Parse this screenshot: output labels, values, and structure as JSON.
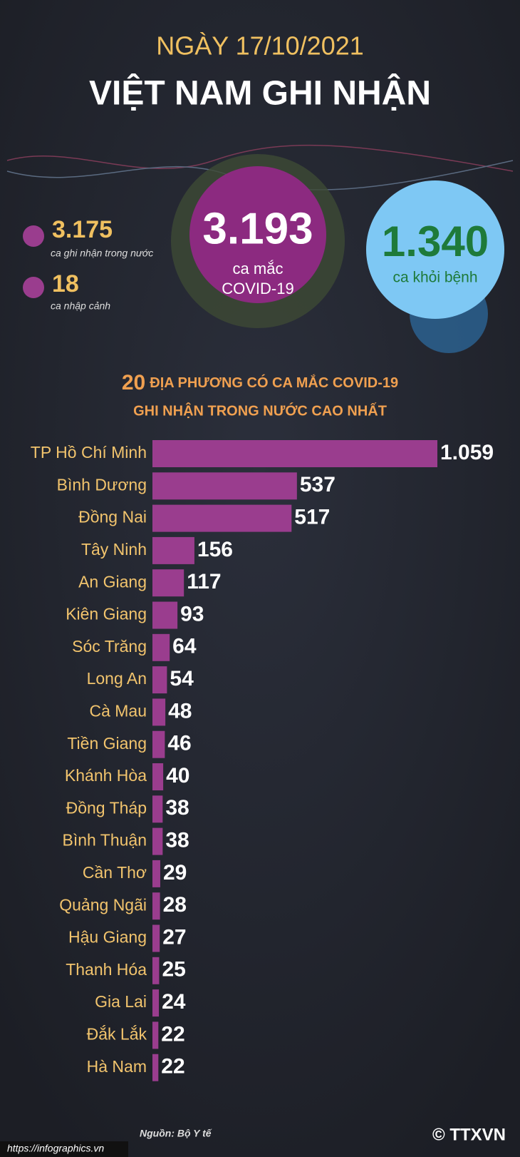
{
  "header": {
    "date": "NGÀY 17/10/2021",
    "title": "VIỆT NAM GHI NHẬN"
  },
  "summary": {
    "domestic": {
      "value": "3.175",
      "label": "ca ghi nhận trong nước"
    },
    "imported": {
      "value": "18",
      "label": "ca nhập cảnh"
    },
    "total": {
      "value": "3.193",
      "label": "ca mắc",
      "sublabel": "COVID-19"
    },
    "recovered": {
      "value": "1.340",
      "label": "ca khỏi bệnh"
    }
  },
  "chart_data": {
    "type": "bar",
    "orientation": "horizontal",
    "title_number": "20",
    "title": "ĐỊA PHƯƠNG CÓ CA MẮC COVID-19",
    "subtitle": "GHI NHẬN TRONG NƯỚC CAO NHẤT",
    "categories": [
      "TP Hồ Chí Minh",
      "Bình Dương",
      "Đồng Nai",
      "Tây Ninh",
      "An Giang",
      "Kiên Giang",
      "Sóc Trăng",
      "Long An",
      "Cà Mau",
      "Tiền Giang",
      "Khánh Hòa",
      "Đồng Tháp",
      "Bình Thuận",
      "Cần Thơ",
      "Quảng Ngãi",
      "Hậu Giang",
      "Thanh Hóa",
      "Gia Lai",
      "Đắk Lắk",
      "Hà Nam"
    ],
    "values": [
      1059,
      537,
      517,
      156,
      117,
      93,
      64,
      54,
      48,
      46,
      40,
      38,
      38,
      29,
      28,
      27,
      25,
      24,
      22,
      22
    ],
    "value_labels": [
      "1.059",
      "537",
      "517",
      "156",
      "117",
      "93",
      "64",
      "54",
      "48",
      "46",
      "40",
      "38",
      "38",
      "29",
      "28",
      "27",
      "25",
      "24",
      "22",
      "22"
    ],
    "color": "#9a3d8e"
  },
  "footer": {
    "source": "Nguồn: Bộ Y tế",
    "url": "https://infographics.vn",
    "copyright": "© TTXVN"
  }
}
